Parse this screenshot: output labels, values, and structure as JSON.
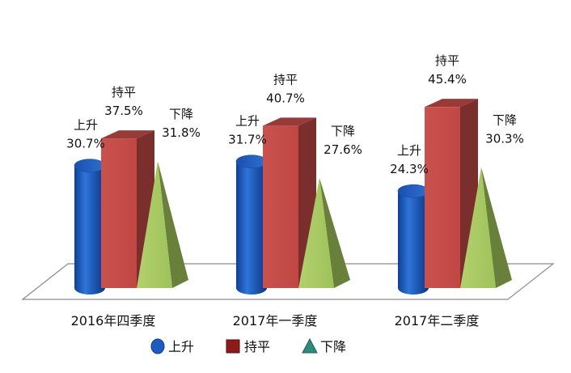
{
  "chart_data": {
    "type": "bar",
    "title": "",
    "xlabel": "",
    "ylabel": "",
    "categories": [
      "2016年四季度",
      "2017年一季度",
      "2017年二季度"
    ],
    "series": [
      {
        "name": "上升",
        "shape": "cylinder",
        "color": "#1f5bbf",
        "values": [
          30.7,
          31.7,
          24.3
        ]
      },
      {
        "name": "持平",
        "shape": "box",
        "color": "#c0504d",
        "values": [
          37.5,
          40.7,
          45.4
        ]
      },
      {
        "name": "下降",
        "shape": "pyramid",
        "color": "#9bbb59",
        "values": [
          31.8,
          27.6,
          30.3
        ]
      }
    ],
    "value_suffix": "%",
    "ylim": [
      0,
      50
    ],
    "grid": false,
    "legend_position": "bottom"
  }
}
